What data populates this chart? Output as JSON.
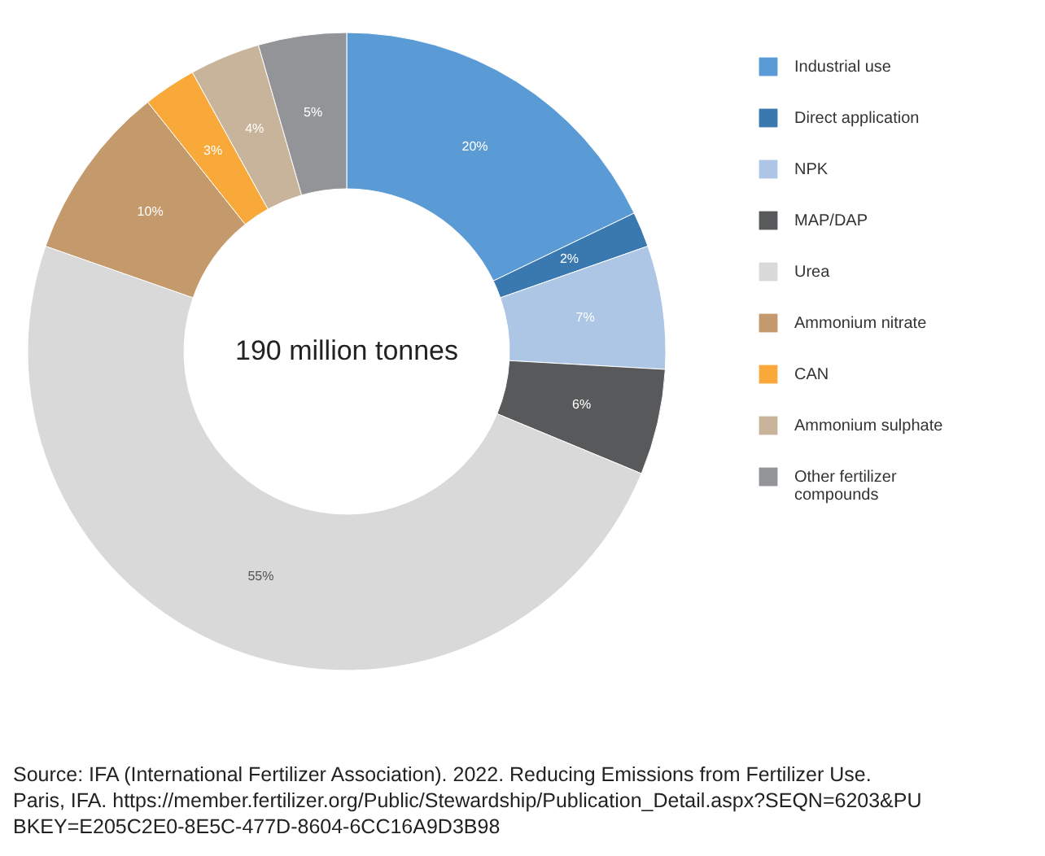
{
  "chart_data": {
    "type": "donut",
    "categories": [
      "Industrial use",
      "Direct application",
      "NPK",
      "MAP/DAP",
      "Urea",
      "Ammonium nitrate",
      "CAN",
      "Ammonium sulphate",
      "Other fertilizer compounds"
    ],
    "values": [
      20,
      2,
      7,
      6,
      55,
      10,
      3,
      4,
      5
    ],
    "value_labels": [
      "20%",
      "2%",
      "7%",
      "6%",
      "55%",
      "10%",
      "3%",
      "4%",
      "5%"
    ],
    "colors": [
      "#5b9bd5",
      "#3a78b0",
      "#adc6e6",
      "#58595b",
      "#d9d9d9",
      "#c49a6c",
      "#f9a93a",
      "#c8b49a",
      "#929497"
    ],
    "legend": "right",
    "annotations": [
      "190 million tonnes",
      "Source: IFA (International Fertilizer Association). 2022. Reducing Emissions from Fertilizer Use. Paris, IFA. https://member.fertilizer.org/Public/Stewardship/Publication_Detail.aspx?SEQN=6203&PUBKEY=E205C2E0-8E5C-477D-8604-6CC16A9D3B98"
    ]
  }
}
